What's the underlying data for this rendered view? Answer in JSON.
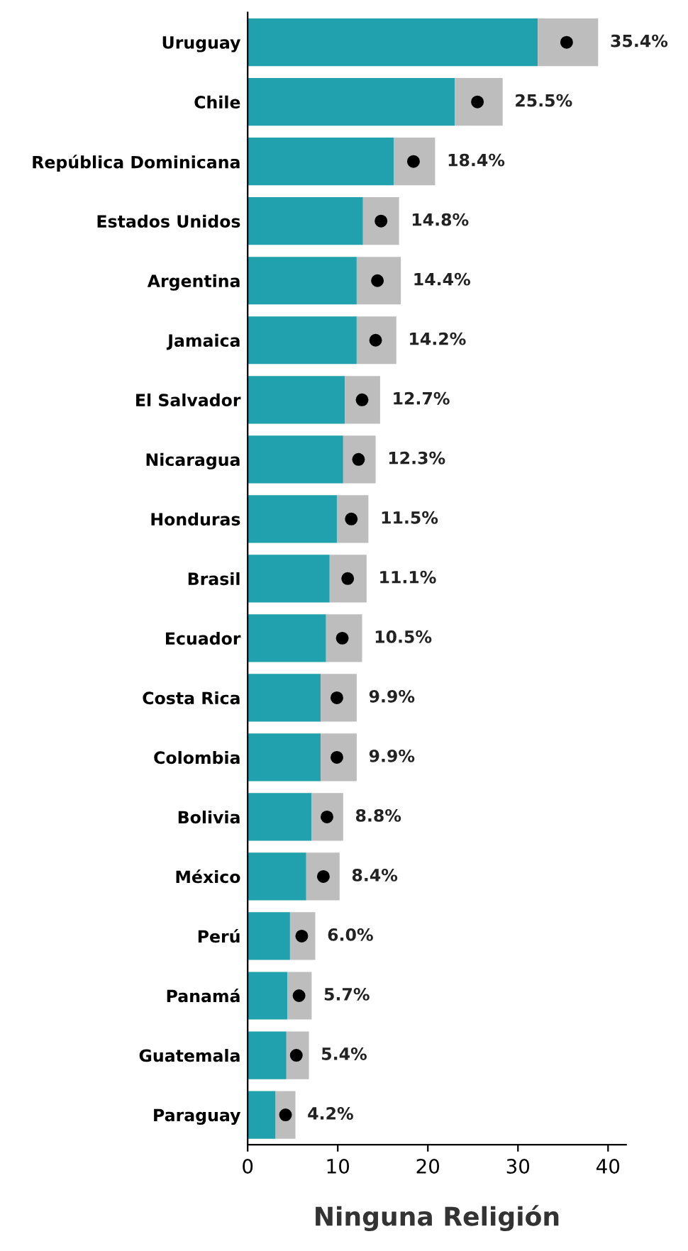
{
  "chart_data": {
    "type": "bar",
    "orientation": "horizontal",
    "stacked": true,
    "xlabel": "Ninguna Religión",
    "categories": [
      "Uruguay",
      "Chile",
      "República Dominicana",
      "Estados Unidos",
      "Argentina",
      "Jamaica",
      "El Salvador",
      "Nicaragua",
      "Honduras",
      "Brasil",
      "Ecuador",
      "Costa Rica",
      "Colombia",
      "Bolivia",
      "México",
      "Perú",
      "Panamá",
      "Guatemala",
      "Paraguay"
    ],
    "series": [
      {
        "color": "#21a0ae",
        "values": [
          32.2,
          23.0,
          16.2,
          12.8,
          12.1,
          12.1,
          10.8,
          10.6,
          9.9,
          9.1,
          8.7,
          8.1,
          8.1,
          7.1,
          6.5,
          4.7,
          4.4,
          4.3,
          3.1
        ]
      },
      {
        "color": "#bdbdbd",
        "values": [
          6.7,
          5.3,
          4.6,
          4.0,
          4.9,
          4.4,
          3.9,
          3.6,
          3.5,
          4.1,
          4.0,
          4.0,
          4.0,
          3.5,
          3.7,
          2.8,
          2.7,
          2.5,
          2.2
        ]
      },
      {
        "type": "scatter",
        "color": "#000000",
        "marker": "circle",
        "values": [
          35.4,
          25.5,
          18.4,
          14.8,
          14.4,
          14.2,
          12.7,
          12.3,
          11.5,
          11.1,
          10.5,
          9.9,
          9.9,
          8.8,
          8.4,
          6.0,
          5.7,
          5.4,
          4.2
        ],
        "value_labels": [
          "35.4%",
          "25.5%",
          "18.4%",
          "14.8%",
          "14.4%",
          "14.2%",
          "12.7%",
          "12.3%",
          "11.5%",
          "11.1%",
          "10.5%",
          "9.9%",
          "9.9%",
          "8.8%",
          "8.4%",
          "6.0%",
          "5.7%",
          "5.4%",
          "4.2%"
        ]
      }
    ],
    "xlim": [
      0,
      42
    ],
    "xticks": [
      0,
      10,
      20,
      30,
      40
    ],
    "grid": false,
    "legend": false
  }
}
